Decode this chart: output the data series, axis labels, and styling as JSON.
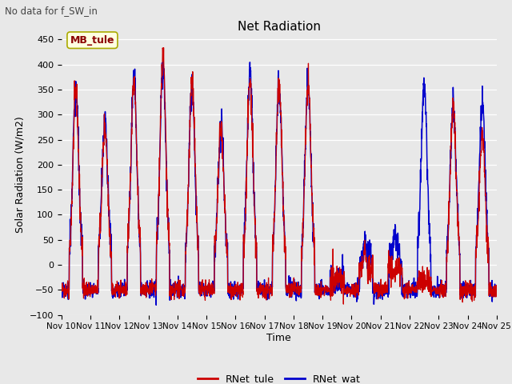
{
  "title": "Net Radiation",
  "suptitle": "No data for f_SW_in",
  "ylabel": "Solar Radiation (W/m2)",
  "xlabel": "Time",
  "ylim": [
    -100,
    460
  ],
  "yticks": [
    -100,
    -50,
    0,
    50,
    100,
    150,
    200,
    250,
    300,
    350,
    400,
    450
  ],
  "xtick_labels": [
    "Nov 10",
    "Nov 11",
    "Nov 12",
    "Nov 13",
    "Nov 14",
    "Nov 15",
    "Nov 16",
    "Nov 17",
    "Nov 18",
    "Nov 19",
    "Nov 20",
    "Nov 21",
    "Nov 22",
    "Nov 23",
    "Nov 24",
    "Nov 25"
  ],
  "color_tule": "#cc0000",
  "color_wat": "#0000cc",
  "legend_label_tule": "RNet_tule",
  "legend_label_wat": "RNet_wat",
  "annotation_label": "MB_tule",
  "background_color": "#e8e8e8",
  "plot_bg_color": "#e8e8e8",
  "peaks_tule": [
    345,
    275,
    370,
    415,
    370,
    270,
    365,
    360,
    360,
    -50,
    30,
    80,
    0,
    315,
    260
  ],
  "peaks_wat": [
    350,
    280,
    370,
    400,
    355,
    275,
    390,
    360,
    360,
    -50,
    60,
    60,
    355,
    320,
    330
  ],
  "night_base": -50,
  "night_noise": 8,
  "day_noise": 15,
  "linewidth_tule": 0.9,
  "linewidth_wat": 1.1
}
